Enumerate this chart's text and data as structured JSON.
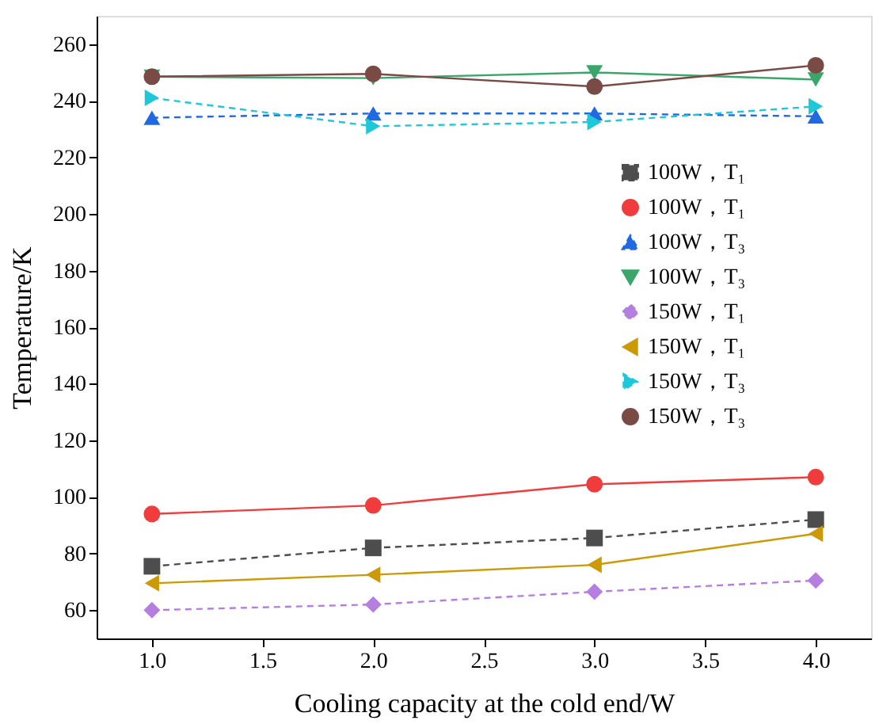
{
  "chart_data": {
    "type": "line",
    "xlabel": "Cooling capacity at the cold end/W",
    "ylabel": "Temperature/K",
    "x": [
      1.0,
      2.0,
      3.0,
      4.0
    ],
    "xlim": [
      0.75,
      4.25
    ],
    "xticks": [
      {
        "value": 1,
        "label": "1.0"
      },
      {
        "value": 1.5,
        "label": "1.5"
      },
      {
        "value": 2,
        "label": "2.0"
      },
      {
        "value": 2.5,
        "label": "2.5"
      },
      {
        "value": 3,
        "label": "3.0"
      },
      {
        "value": 3.5,
        "label": "3.5"
      },
      {
        "value": 4,
        "label": "4.0"
      }
    ],
    "ylim": [
      50,
      270
    ],
    "yticks": [
      60,
      80,
      100,
      120,
      140,
      160,
      180,
      200,
      220,
      240,
      260
    ],
    "grid": false,
    "legend": "right",
    "series": [
      {
        "name": "100W，T₁",
        "color": "#4d4d4d",
        "marker": "square",
        "line_style": "dashed",
        "values": [
          75.5,
          82,
          85.5,
          92
        ]
      },
      {
        "name": "100W，T₁",
        "color": "#f03c3c",
        "marker": "circle",
        "line_style": "solid",
        "values": [
          94,
          97,
          104.5,
          107
        ]
      },
      {
        "name": "100W，T₃",
        "color": "#1f6ae0",
        "marker": "triangle",
        "line_style": "dashed",
        "values": [
          234,
          235.5,
          235.5,
          234.5
        ]
      },
      {
        "name": "100W，T₃",
        "color": "#3aa66a",
        "marker": "triangle-down",
        "line_style": "solid",
        "values": [
          248.5,
          248,
          250,
          247.5
        ]
      },
      {
        "name": "150W，T₁",
        "color": "#b57fe0",
        "marker": "diamond",
        "line_style": "dashed",
        "values": [
          60,
          62,
          66.5,
          70.5
        ]
      },
      {
        "name": "150W，T₁",
        "color": "#cc9a06",
        "marker": "triangle-left",
        "line_style": "solid",
        "values": [
          69.5,
          72.5,
          76,
          87
        ]
      },
      {
        "name": "150W，T₃",
        "color": "#1ec8d8",
        "marker": "triangle-right",
        "line_style": "dashed",
        "values": [
          241,
          231,
          232.5,
          238
        ]
      },
      {
        "name": "150W，T₃",
        "color": "#7a4a45",
        "marker": "circle",
        "line_style": "solid",
        "values": [
          248.5,
          249.5,
          245,
          252.5
        ]
      }
    ]
  }
}
